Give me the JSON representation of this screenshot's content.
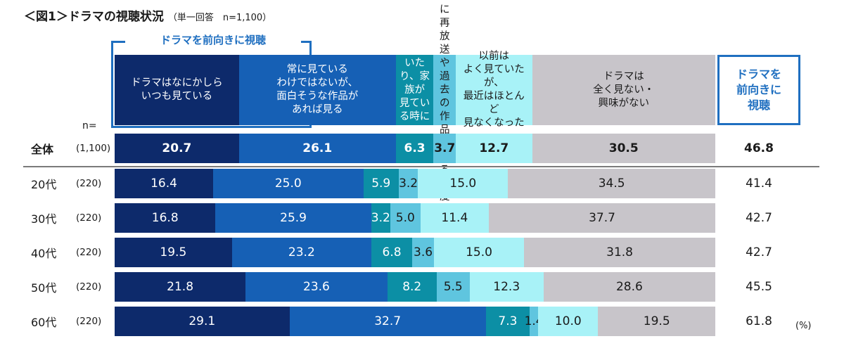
{
  "title": {
    "main": "＜図1＞ドラマの視聴状況",
    "sub": "（単一回答　n=1,100）"
  },
  "bracket_label": "ドラマを前向きに視聴",
  "total_header": "ドラマを\n前向きに\n視聴",
  "n_label": "n=",
  "unit": "(%)",
  "colors": [
    "#0d2a6b",
    "#1660b5",
    "#0c8fa5",
    "#5fc5df",
    "#a8f2f7",
    "#c8c5ca"
  ],
  "text_colors": [
    "#ffffff",
    "#ffffff",
    "#ffffff",
    "#1a1a1a",
    "#1a1a1a",
    "#1a1a1a"
  ],
  "chart_data": {
    "type": "bar",
    "orientation": "horizontal-stacked-100",
    "categories": [
      "ドラマはなにかしら\nいつも見ている",
      "常に見ている\nわけではないが、\n面白そうな作品が\nあれば見る",
      "テレビがついて\nいたり、家族が\n見ている時に\nついでに見る程度",
      "たまに再放送や\n過去の作品を\n見る程度",
      "以前は\nよく見ていたが、\n最近はほとんど\n見なくなった",
      "ドラマは\n全く見ない・\n興味がない"
    ],
    "rows": [
      {
        "label": "全体",
        "n": "(1,100)",
        "values": [
          "20.7",
          "26.1",
          "6.3",
          "3.7",
          "12.7",
          "30.5"
        ],
        "total": "46.8",
        "bold": true
      },
      {
        "label": "20代",
        "n": "(220)",
        "values": [
          "16.4",
          "25.0",
          "5.9",
          "3.2",
          "15.0",
          "34.5"
        ],
        "total": "41.4",
        "bold": false
      },
      {
        "label": "30代",
        "n": "(220)",
        "values": [
          "16.8",
          "25.9",
          "3.2",
          "5.0",
          "11.4",
          "37.7"
        ],
        "total": "42.7",
        "bold": false
      },
      {
        "label": "40代",
        "n": "(220)",
        "values": [
          "19.5",
          "23.2",
          "6.8",
          "3.6",
          "15.0",
          "31.8"
        ],
        "total": "42.7",
        "bold": false
      },
      {
        "label": "50代",
        "n": "(220)",
        "values": [
          "21.8",
          "23.6",
          "8.2",
          "5.5",
          "12.3",
          "28.6"
        ],
        "total": "45.5",
        "bold": false
      },
      {
        "label": "60代",
        "n": "(220)",
        "values": [
          "29.1",
          "32.7",
          "7.3",
          "1.4",
          "10.0",
          "19.5"
        ],
        "total": "61.8",
        "bold": false
      }
    ],
    "xlim": [
      0,
      100
    ]
  }
}
